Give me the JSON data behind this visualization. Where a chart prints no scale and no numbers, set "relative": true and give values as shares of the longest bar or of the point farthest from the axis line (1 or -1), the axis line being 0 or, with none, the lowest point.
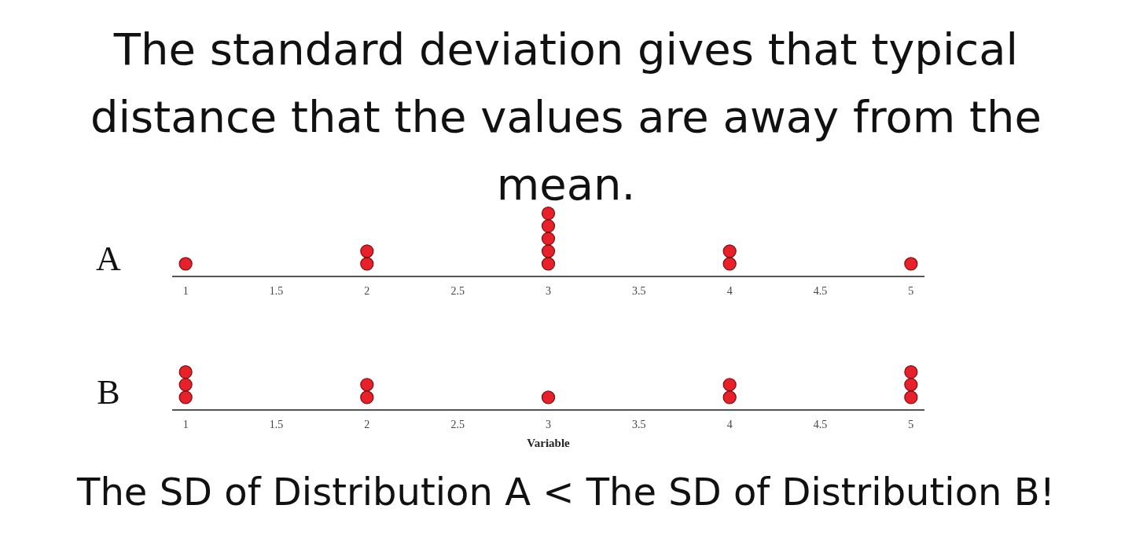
{
  "chart_data": [
    {
      "type": "scatter",
      "title": "The standard deviation gives that typical distance that the values are away from the mean.",
      "ylabel": "A",
      "x": [
        1,
        2,
        2,
        3,
        3,
        3,
        3,
        3,
        4,
        4,
        5
      ],
      "values": [
        0.2,
        0.2,
        0.4,
        0.2,
        0.4,
        0.6,
        0.8,
        1,
        0.2,
        0.4,
        0.2
      ],
      "relative": true,
      "color": "#e8202a",
      "marker": "circle",
      "xlim": [
        0.93,
        5.07
      ],
      "xticks": [
        1,
        1.5,
        2,
        2.5,
        3,
        3.5,
        4,
        4.5,
        5
      ],
      "grid": false,
      "legend": false,
      "tick_labels": "x"
    },
    {
      "type": "scatter",
      "ylabel": "B",
      "xlabel": "Variable",
      "x": [
        1,
        1,
        1,
        2,
        2,
        3,
        4,
        4,
        5,
        5,
        5
      ],
      "values": [
        0.333,
        0.667,
        1,
        0.333,
        0.667,
        0.333,
        0.333,
        0.667,
        0.333,
        0.667,
        1
      ],
      "relative": true,
      "color": "#e8202a",
      "marker": "circle",
      "xlim": [
        0.93,
        5.07
      ],
      "xticks": [
        1,
        1.5,
        2,
        2.5,
        3,
        3.5,
        4,
        4.5,
        5
      ],
      "grid": false,
      "legend": false,
      "tick_labels": "x",
      "annotations": [
        "The SD of Distribution A < The SD of Distribution B!"
      ]
    }
  ]
}
